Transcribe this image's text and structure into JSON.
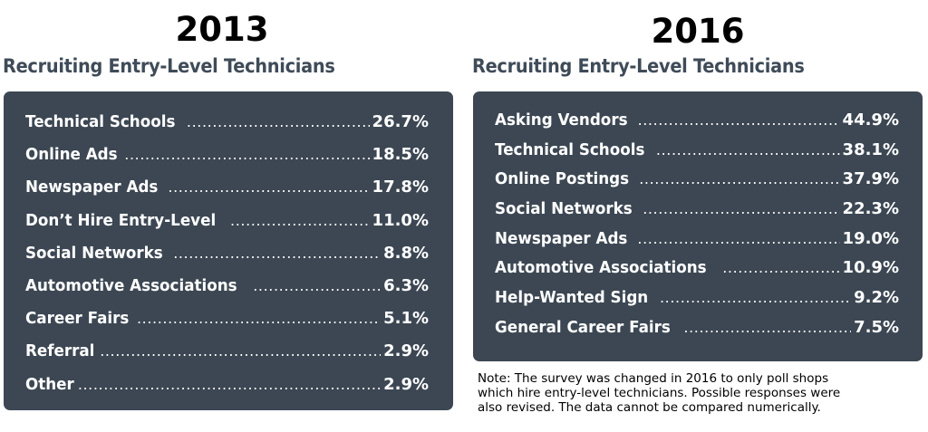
{
  "chart_data": [
    {
      "type": "table",
      "year": "2013",
      "title": "Recruiting Entry-Level Technicians",
      "categories": [
        "Technical Schools",
        "Online Ads",
        "Newspaper Ads",
        "Don’t Hire Entry-Level",
        "Social Networks",
        "Automotive Associations",
        "Career Fairs",
        "Referral",
        "Other"
      ],
      "values": [
        26.7,
        18.5,
        17.8,
        11.0,
        8.8,
        6.3,
        5.1,
        2.9,
        2.9
      ],
      "value_labels": [
        "26.7%",
        "18.5%",
        "17.8%",
        "11.0%",
        "8.8%",
        "6.3%",
        "5.1%",
        "2.9%",
        "2.9%"
      ]
    },
    {
      "type": "table",
      "year": "2016",
      "title": "Recruiting Entry-Level Technicians",
      "categories": [
        "Asking Vendors",
        "Technical Schools",
        "Online Postings",
        "Social Networks",
        "Newspaper Ads",
        "Automotive Associations",
        "Help-Wanted Sign",
        "General Career Fairs"
      ],
      "values": [
        44.9,
        38.1,
        37.9,
        22.3,
        19.0,
        10.9,
        9.2,
        7.5
      ],
      "value_labels": [
        "44.9%",
        "38.1%",
        "37.9%",
        "22.3%",
        "19.0%",
        "10.9%",
        "9.2%",
        "7.5%"
      ]
    }
  ],
  "note": {
    "lines": [
      "Note: The survey was changed in 2016 to only poll shops",
      "which hire entry-level technicians. Possible responses were",
      "also revised. The data cannot be compared numerically."
    ]
  },
  "colors": {
    "card_bg": "#3c4753",
    "subtitle": "#3f4b58",
    "row_text": "#ffffff"
  }
}
